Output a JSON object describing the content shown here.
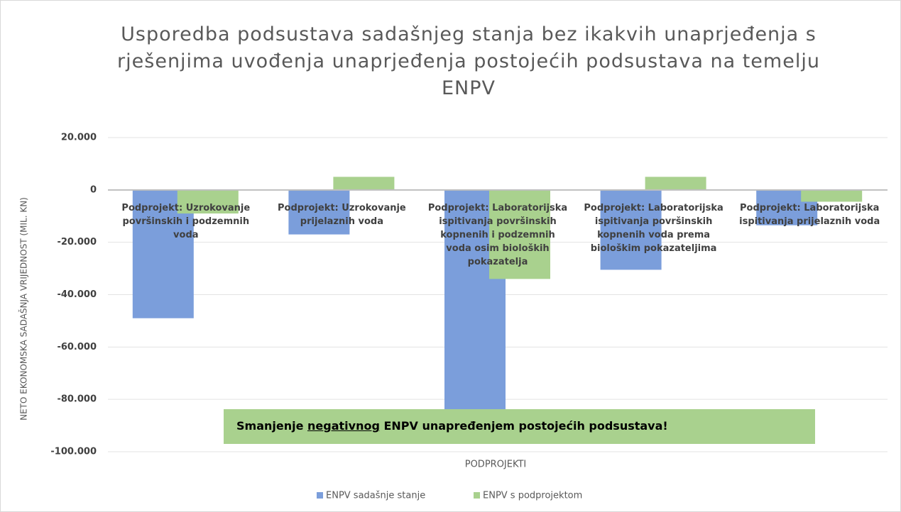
{
  "chart_data": {
    "type": "bar",
    "title": "Usporedba podsustava sadašnjeg stanja bez ikakvih unaprjeđenja s rješenjima uvođenja unaprjeđenja postojećih podsustava na temelju ENPV",
    "categories": [
      "Podprojekt: Uzrokovanje površinskih i podzemnih voda",
      "Podprojekt: Uzrokovanje prijelaznih voda",
      "Podprojekt: Laboratorijska ispitivanja površinskih kopnenih i podzemnih voda osim bioloških pokazatelja",
      "Podprojekt: Laboratorijska ispitivanja površinskih kopnenih voda prema biološkim pokazateljima",
      "Podprojekt: Laboratorijska ispitivanja prijelaznih voda"
    ],
    "series": [
      {
        "name": "ENPV sadašnje stanje",
        "color": "#7b9edb",
        "values": [
          -49000,
          -17000,
          -84000,
          -30500,
          -13500
        ]
      },
      {
        "name": "ENPV s podprojektom",
        "color": "#a9d18e",
        "values": [
          -9000,
          5000,
          -34000,
          5000,
          -4500
        ]
      }
    ],
    "ylabel": "NETO EKONOMSKA SADAŠNJA VRIJEDNOST (MIL. KN)",
    "xlabel": "PODPROJEKTI",
    "ylim": [
      -100000,
      20000
    ],
    "yticks": [
      {
        "value": 20000,
        "label": "20.000"
      },
      0,
      {
        "value": -20000,
        "label": "-20.000"
      },
      {
        "value": -40000,
        "label": "-40.000"
      },
      {
        "value": -60000,
        "label": "-60.000"
      },
      {
        "value": -80000,
        "label": "-80.000"
      },
      {
        "value": -100000,
        "label": "-100.000"
      }
    ],
    "grid": true,
    "legend": "bottom",
    "annotation": [
      "Smanjenje ",
      "negativnog",
      " ENPV unapređenjem postojećih podsustava!"
    ]
  }
}
